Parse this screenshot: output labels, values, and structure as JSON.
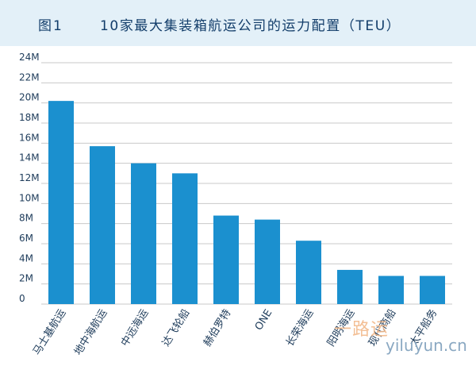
{
  "header": {
    "figure_label": "图1",
    "title": "10家最大集装箱航运公司的运力配置（TEU）"
  },
  "colors": {
    "bar": "#1b90cf",
    "title_background": "#e3f0f8",
    "title_text": "#123d6a",
    "grid": "#c9c9c9"
  },
  "watermark": {
    "text": "一路运",
    "url": "yiluyun.cn"
  },
  "chart_data": {
    "type": "bar",
    "title": "10家最大集装箱航运公司的运力配置（TEU）",
    "xlabel": "",
    "ylabel": "",
    "categories": [
      "马士基航运",
      "地中海航运",
      "中远海运",
      "达飞轮船",
      "赫伯罗特",
      "ONE",
      "长荣海运",
      "阳明海运",
      "现代商船",
      "太平船务"
    ],
    "values": [
      20.2,
      15.7,
      14.0,
      13.0,
      8.8,
      8.4,
      6.3,
      3.4,
      2.8,
      2.8
    ],
    "unit": "M",
    "ylim": [
      0,
      24
    ],
    "yticks": [
      0,
      2,
      4,
      6,
      8,
      10,
      12,
      14,
      16,
      18,
      20,
      22,
      24
    ],
    "ytick_labels": [
      "0",
      "2M",
      "4M",
      "6M",
      "8M",
      "10M",
      "12M",
      "14M",
      "16M",
      "18M",
      "20M",
      "22M",
      "24M"
    ],
    "grid": true,
    "legend": "none"
  }
}
